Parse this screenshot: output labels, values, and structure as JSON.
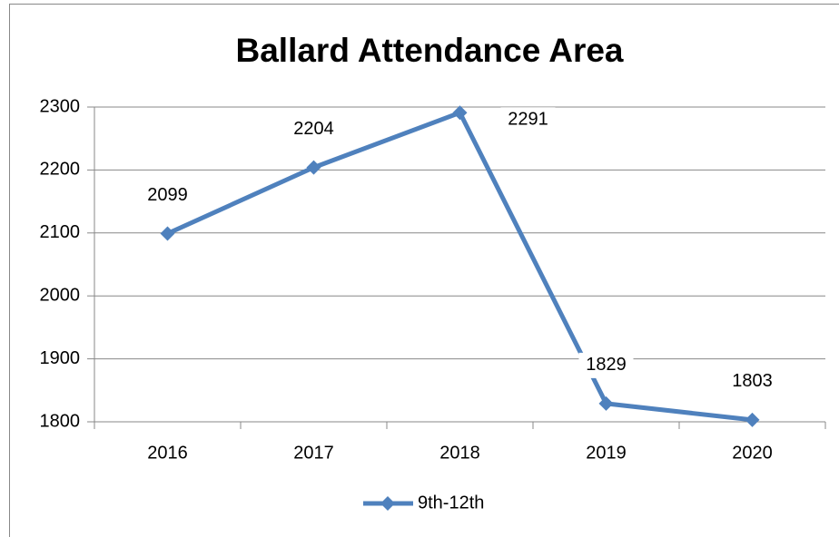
{
  "chart_data": {
    "type": "line",
    "title": "Ballard Attendance Area",
    "categories": [
      "2016",
      "2017",
      "2018",
      "2019",
      "2020"
    ],
    "series": [
      {
        "name": "9th-12th",
        "color": "#4f81bd",
        "values": [
          2099,
          2204,
          2291,
          1829,
          1803
        ]
      }
    ],
    "ylim": [
      1800,
      2300
    ],
    "yticks": [
      1800,
      1900,
      2000,
      2100,
      2200,
      2300
    ],
    "grid": true,
    "legend": "bottom"
  }
}
